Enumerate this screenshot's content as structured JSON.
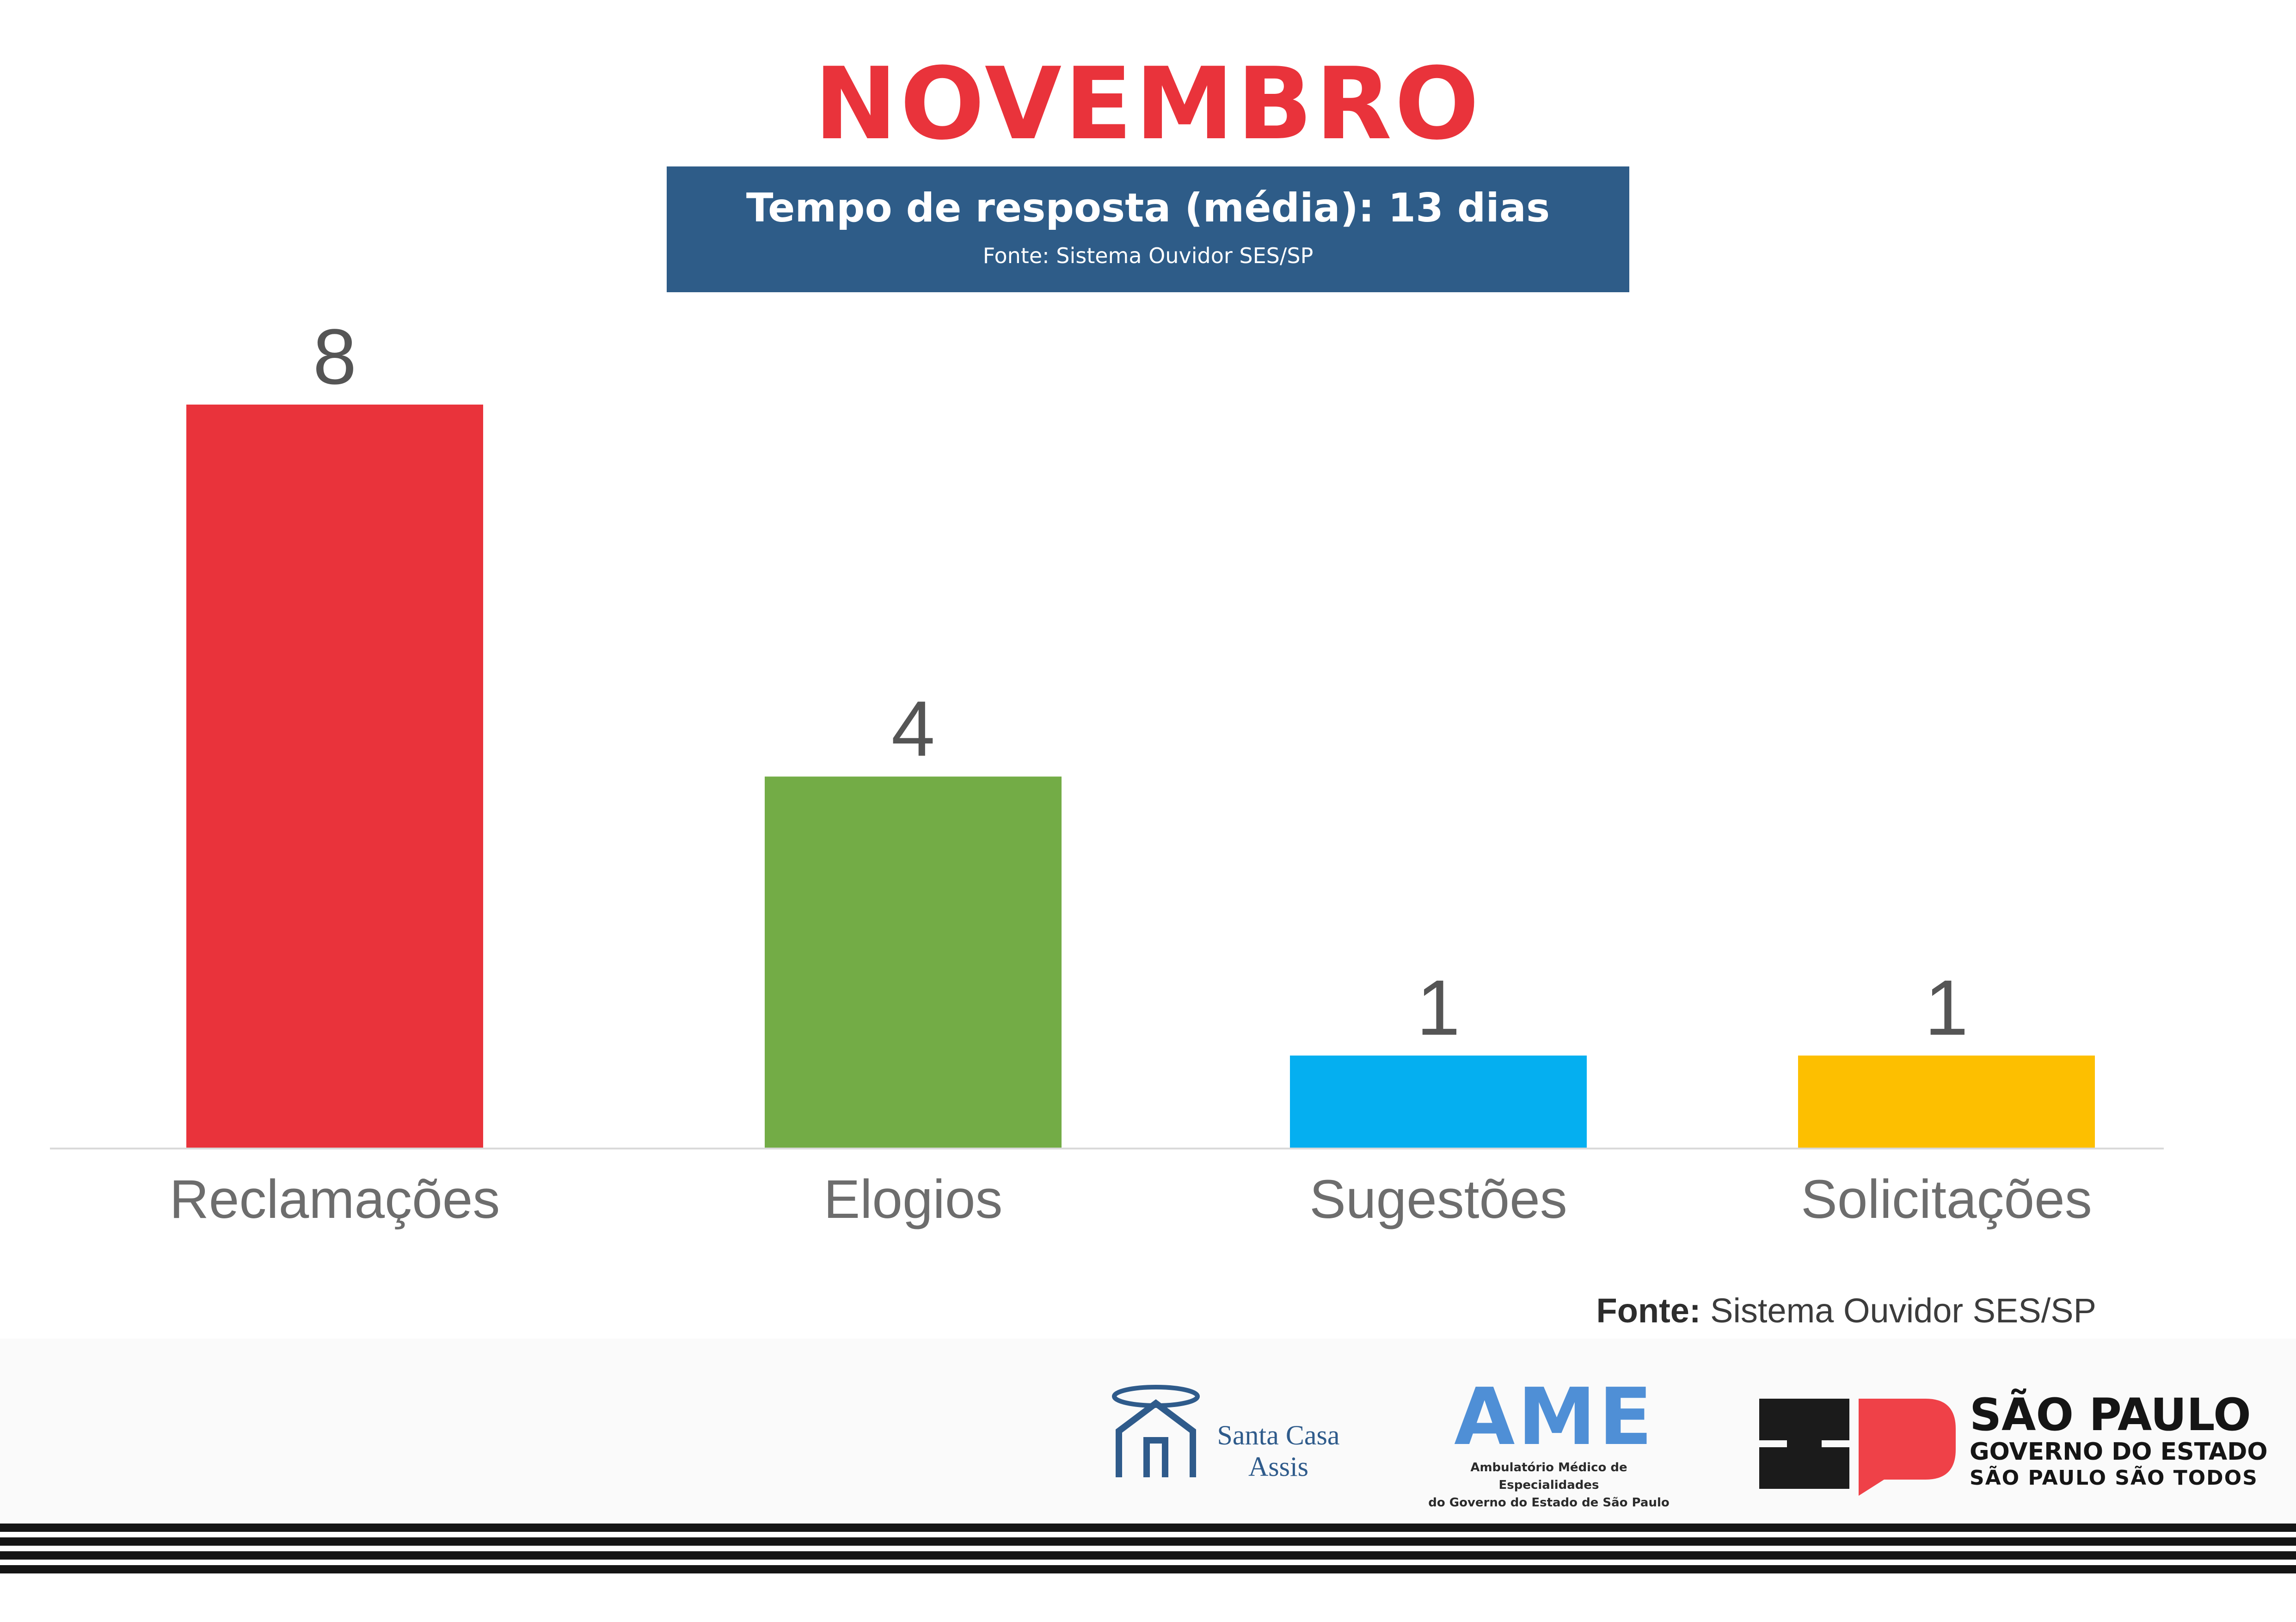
{
  "header": {
    "title": "NOVEMBRO",
    "info_main": "Tempo de resposta (média): 13 dias",
    "info_sub": "Fonte: Sistema Ouvidor SES/SP"
  },
  "chart_data": {
    "type": "bar",
    "title": "",
    "xlabel": "",
    "ylabel": "",
    "categories": [
      "Reclamações",
      "Elogios",
      "Sugestões",
      "Solicitações"
    ],
    "values": [
      8,
      4,
      1,
      1
    ],
    "colors": [
      "#e9333b",
      "#73ac46",
      "#05aff0",
      "#fdbf00"
    ],
    "ylim": [
      0,
      8
    ],
    "grid": false,
    "legend": "none"
  },
  "source": {
    "label": "Fonte:",
    "text": " Sistema Ouvidor SES/SP"
  },
  "logos": {
    "santa_casa": {
      "name": "Santa Casa\nAssis",
      "icon": "santa-casa-house-icon"
    },
    "ame": {
      "mark": "AME",
      "description_line1": "Ambulatório Médico de Especialidades",
      "description_line2": "do Governo do Estado de São Paulo"
    },
    "sao_paulo": {
      "line1": "SÃO PAULO",
      "line2": "GOVERNO DO ESTADO",
      "line3": "SÃO PAULO SÃO TODOS",
      "icon": "sp-monogram-icon"
    }
  },
  "colors": {
    "title": "#e9333b",
    "info_box": "#2e5c88",
    "stripes": "#151515"
  }
}
